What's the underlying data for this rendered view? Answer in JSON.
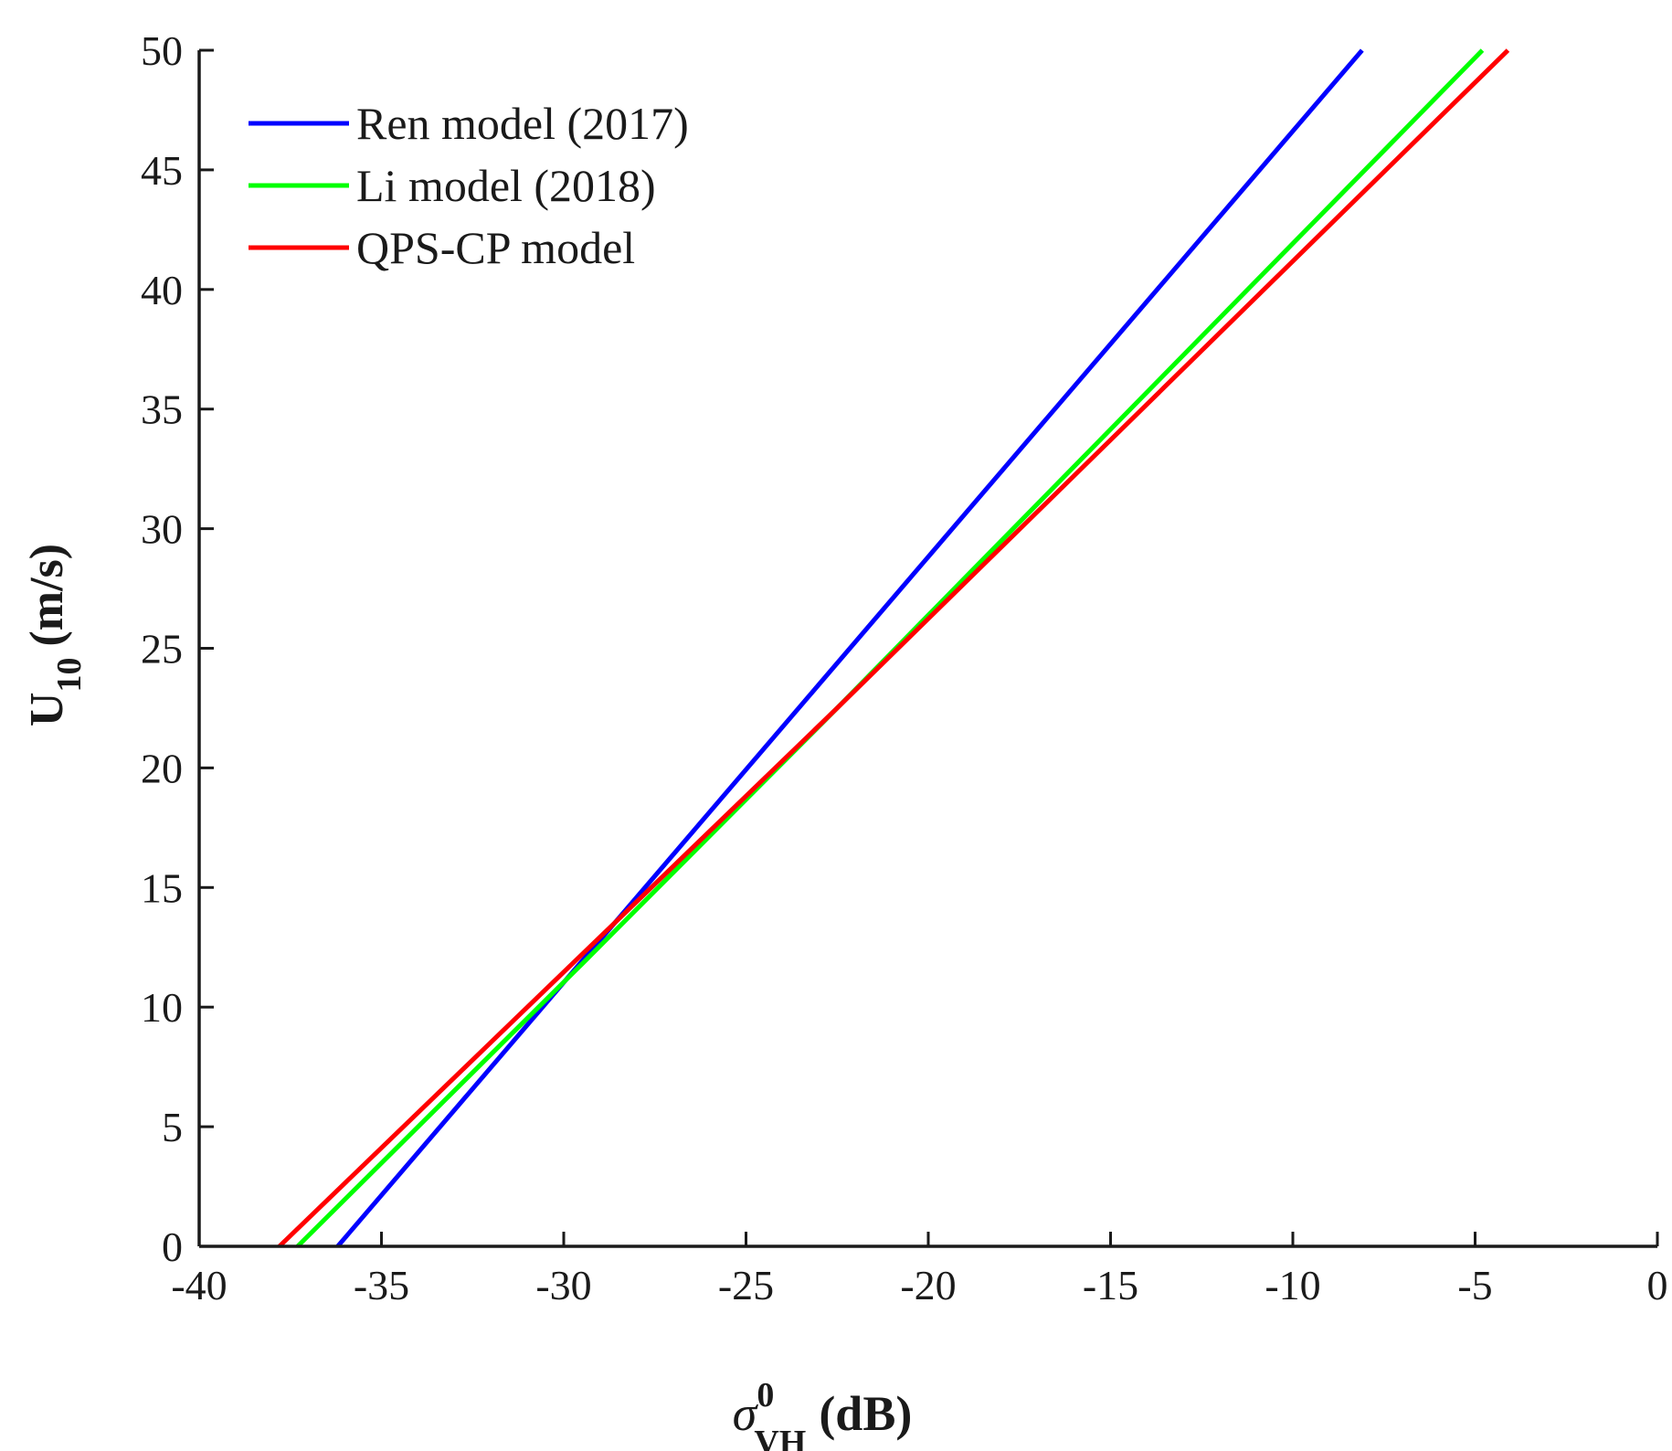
{
  "chart_data": {
    "type": "line",
    "x_axis": {
      "symbol": "σ",
      "superscript": "0",
      "subscript": "VH",
      "unit": "(dB)",
      "xlim": [
        -40,
        0
      ],
      "ticks": [
        -40,
        -35,
        -30,
        -25,
        -20,
        -15,
        -10,
        -5,
        0
      ],
      "tick_labels": [
        "-40",
        "-35",
        "-30",
        "-25",
        "-20",
        "-15",
        "-10",
        "-5",
        "0"
      ]
    },
    "y_axis": {
      "symbol": "U",
      "subscript": "10",
      "unit": "(m/s)",
      "ylim": [
        0,
        50
      ],
      "ticks": [
        0,
        5,
        10,
        15,
        20,
        25,
        30,
        35,
        40,
        45,
        50
      ],
      "tick_labels": [
        "0",
        "5",
        "10",
        "15",
        "20",
        "25",
        "30",
        "35",
        "40",
        "45",
        "50"
      ]
    },
    "grid": false,
    "legend_position": "top-left",
    "series": [
      {
        "name": "Ren model (2017)",
        "color": "#0000ff",
        "x": [
          -36.2,
          -8.1
        ],
        "y": [
          0,
          50
        ]
      },
      {
        "name": "Li model (2018)",
        "color": "#00ff00",
        "x": [
          -37.3,
          -29.5,
          -22.5,
          -4.8
        ],
        "y": [
          0,
          11.8,
          22.5,
          50
        ]
      },
      {
        "name": "QPS-CP model",
        "color": "#ff0000",
        "x": [
          -37.8,
          -29.5,
          -22.5,
          -4.1
        ],
        "y": [
          0,
          12.2,
          22.5,
          50
        ]
      }
    ]
  }
}
